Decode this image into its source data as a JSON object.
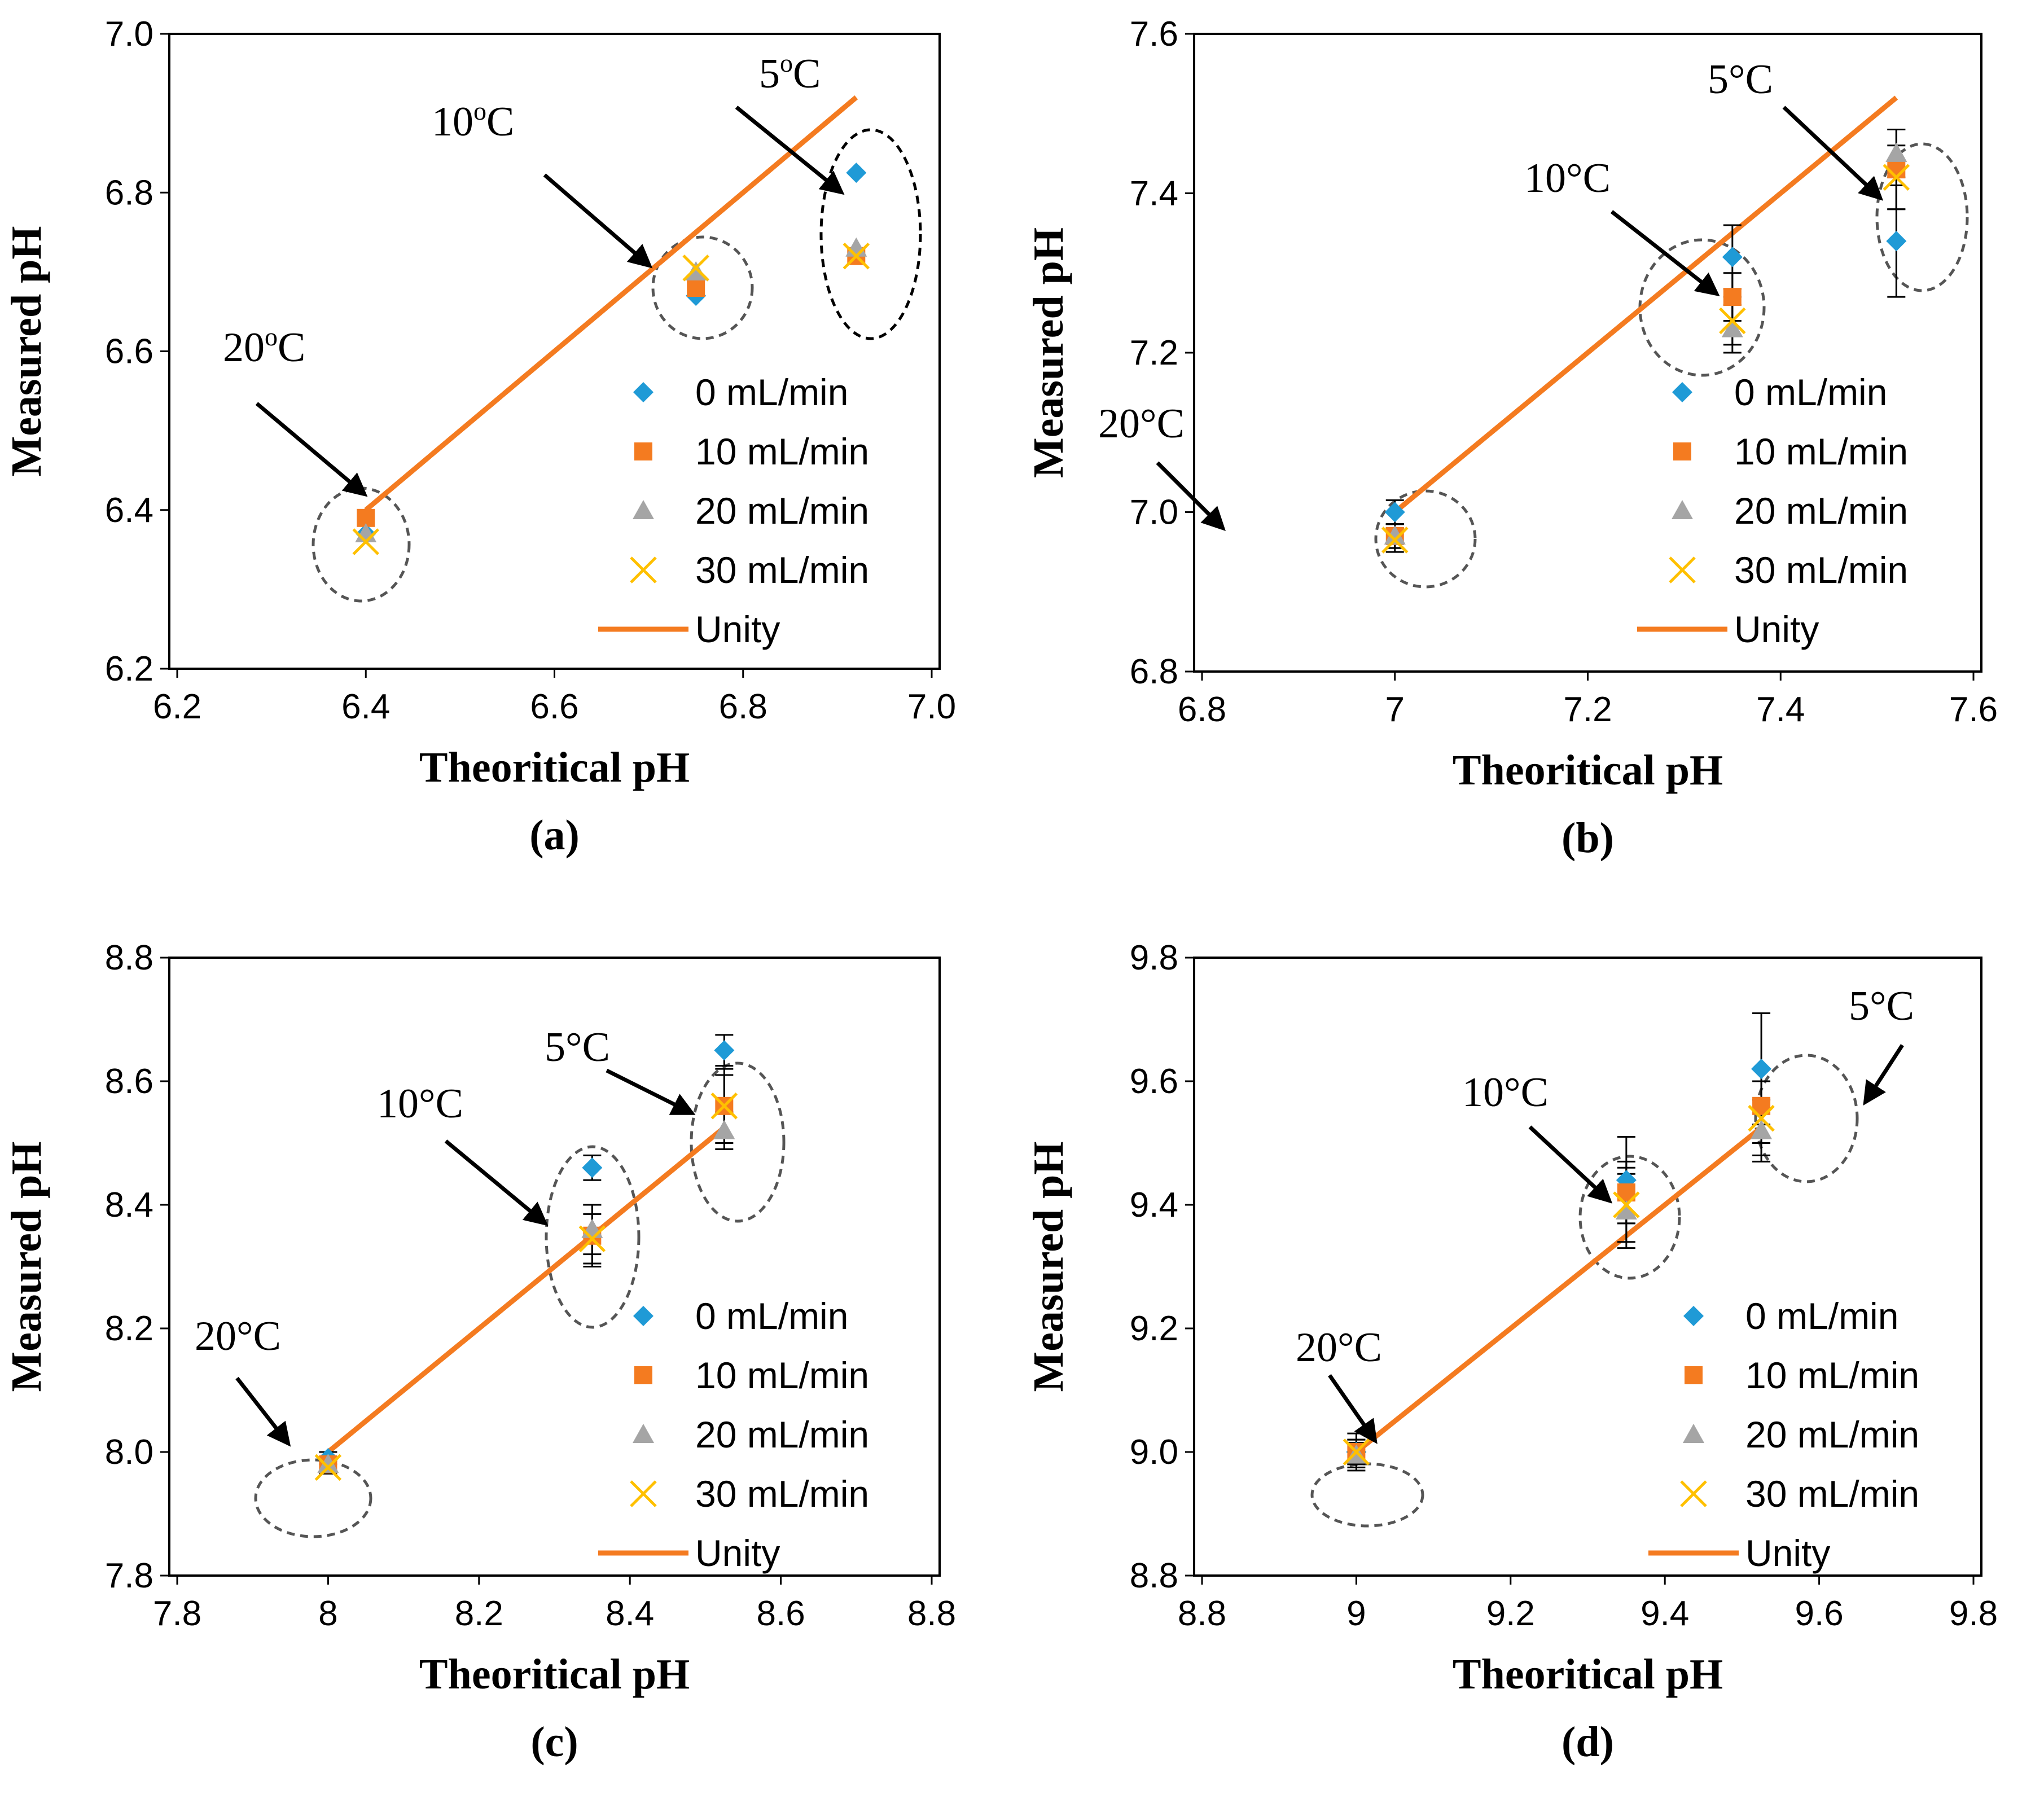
{
  "chart_data": [
    {
      "id": "a",
      "type": "scatter",
      "panel_label": "(a)",
      "xlabel": "Theoritical pH",
      "ylabel": "Measured pH",
      "xlim": [
        6.2,
        7.0
      ],
      "ylim": [
        6.2,
        7.0
      ],
      "xticks": [
        "6.2",
        "6.4",
        "6.6",
        "6.8",
        "7.0"
      ],
      "yticks": [
        "6.2",
        "6.4",
        "6.6",
        "6.8",
        "7.0"
      ],
      "x": [
        6.4,
        6.75,
        6.92
      ],
      "series": [
        {
          "name": "0 mL/min",
          "marker": "diamond",
          "color": "#1f9ad6",
          "values": [
            6.37,
            6.67,
            6.825
          ]
        },
        {
          "name": "10 mL/min",
          "marker": "square",
          "color": "#f47b20",
          "values": [
            6.39,
            6.68,
            6.72
          ]
        },
        {
          "name": "20 mL/min",
          "marker": "triangle",
          "color": "#a5a5a5",
          "values": [
            6.37,
            6.7,
            6.73
          ]
        },
        {
          "name": "30 mL/min",
          "marker": "x",
          "color": "#ffc000",
          "values": [
            6.36,
            6.705,
            6.72
          ]
        }
      ],
      "unity": {
        "name": "Unity",
        "color": "#f47b20",
        "from": 6.4,
        "to": 6.92
      },
      "annotations": [
        {
          "base": "20",
          "deg": "o",
          "unit": "C"
        },
        {
          "base": "10",
          "deg": "o",
          "unit": "C"
        },
        {
          "base": "5",
          "deg": "o",
          "unit": "C"
        }
      ]
    },
    {
      "id": "b",
      "type": "scatter",
      "panel_label": "(b)",
      "xlabel": "Theoritical pH",
      "ylabel": "Measured pH",
      "xlim": [
        6.8,
        7.6
      ],
      "ylim": [
        6.8,
        7.6
      ],
      "xticks": [
        "6.8",
        "7",
        "7.2",
        "7.4",
        "7.6"
      ],
      "yticks": [
        "6.8",
        "7.0",
        "7.2",
        "7.4",
        "7.6"
      ],
      "x": [
        7.0,
        7.35,
        7.52
      ],
      "series": [
        {
          "name": "0 mL/min",
          "marker": "diamond",
          "color": "#1f9ad6",
          "values": [
            7.0,
            7.32,
            7.34
          ],
          "errors": [
            0.015,
            0.04,
            0.07
          ]
        },
        {
          "name": "10 mL/min",
          "marker": "square",
          "color": "#f47b20",
          "values": [
            6.97,
            7.27,
            7.43
          ],
          "errors": [
            0.015,
            0.03,
            0.05
          ]
        },
        {
          "name": "20 mL/min",
          "marker": "triangle",
          "color": "#a5a5a5",
          "values": [
            6.97,
            7.23,
            7.45
          ],
          "errors": [
            0.015,
            0.03,
            0.03
          ]
        },
        {
          "name": "30 mL/min",
          "marker": "x",
          "color": "#ffc000",
          "values": [
            6.965,
            7.24,
            7.42
          ],
          "errors": [
            0.015,
            0.03,
            0.04
          ]
        }
      ],
      "unity": {
        "name": "Unity",
        "color": "#f47b20",
        "from": 7.0,
        "to": 7.52
      },
      "annotations": [
        {
          "base": "20",
          "deg": "°",
          "unit": "C"
        },
        {
          "base": "10",
          "deg": "°",
          "unit": "C"
        },
        {
          "base": "5",
          "deg": "°",
          "unit": "C"
        }
      ]
    },
    {
      "id": "c",
      "type": "scatter",
      "panel_label": "(c)",
      "xlabel": "Theoritical pH",
      "ylabel": "Measured pH",
      "xlim": [
        7.8,
        8.8
      ],
      "ylim": [
        7.8,
        8.8
      ],
      "xticks": [
        "7.8",
        "8",
        "8.2",
        "8.4",
        "8.6",
        "8.8"
      ],
      "yticks": [
        "7.8",
        "8.0",
        "8.2",
        "8.4",
        "8.6",
        "8.8"
      ],
      "x": [
        8.0,
        8.35,
        8.525
      ],
      "series": [
        {
          "name": "0 mL/min",
          "marker": "diamond",
          "color": "#1f9ad6",
          "values": [
            7.99,
            8.46,
            8.65
          ],
          "errors": [
            0.01,
            0.02,
            0.025
          ]
        },
        {
          "name": "10 mL/min",
          "marker": "square",
          "color": "#f47b20",
          "values": [
            7.98,
            8.35,
            8.56
          ],
          "errors": [
            0.01,
            0.05,
            0.06
          ]
        },
        {
          "name": "20 mL/min",
          "marker": "triangle",
          "color": "#a5a5a5",
          "values": [
            7.98,
            8.36,
            8.52
          ],
          "errors": [
            0.01,
            0.04,
            0.03
          ]
        },
        {
          "name": "30 mL/min",
          "marker": "x",
          "color": "#ffc000",
          "values": [
            7.975,
            8.345,
            8.56
          ],
          "errors": [
            0.01,
            0.04,
            0.05
          ]
        }
      ],
      "unity": {
        "name": "Unity",
        "color": "#f47b20",
        "from": 8.0,
        "to": 8.525
      },
      "annotations": [
        {
          "base": "20",
          "deg": "°",
          "unit": "C"
        },
        {
          "base": "10",
          "deg": "°",
          "unit": "C"
        },
        {
          "base": "5",
          "deg": "°",
          "unit": "C"
        }
      ]
    },
    {
      "id": "d",
      "type": "scatter",
      "panel_label": "(d)",
      "xlabel": "Theoritical pH",
      "ylabel": "Measured pH",
      "xlim": [
        8.8,
        9.8
      ],
      "ylim": [
        8.8,
        9.8
      ],
      "xticks": [
        "8.8",
        "9",
        "9.2",
        "9.4",
        "9.6",
        "9.8"
      ],
      "yticks": [
        "8.8",
        "9.0",
        "9.2",
        "9.4",
        "9.6",
        "9.8"
      ],
      "x": [
        9.0,
        9.35,
        9.525
      ],
      "series": [
        {
          "name": "0 mL/min",
          "marker": "diamond",
          "color": "#1f9ad6",
          "values": [
            9.0,
            9.44,
            9.62
          ],
          "errors": [
            0.03,
            0.07,
            0.09
          ]
        },
        {
          "name": "10 mL/min",
          "marker": "square",
          "color": "#f47b20",
          "values": [
            9.0,
            9.42,
            9.56
          ],
          "errors": [
            0.02,
            0.05,
            0.06
          ]
        },
        {
          "name": "20 mL/min",
          "marker": "triangle",
          "color": "#a5a5a5",
          "values": [
            8.995,
            9.39,
            9.52
          ],
          "errors": [
            0.02,
            0.06,
            0.05
          ]
        },
        {
          "name": "30 mL/min",
          "marker": "x",
          "color": "#ffc000",
          "values": [
            9.0,
            9.4,
            9.54
          ],
          "errors": [
            0.02,
            0.06,
            0.06
          ]
        }
      ],
      "unity": {
        "name": "Unity",
        "color": "#f47b20",
        "from": 9.0,
        "to": 9.525
      },
      "annotations": [
        {
          "base": "20",
          "deg": "°",
          "unit": "C"
        },
        {
          "base": "10",
          "deg": "°",
          "unit": "C"
        },
        {
          "base": "5",
          "deg": "°",
          "unit": "C"
        }
      ]
    }
  ]
}
